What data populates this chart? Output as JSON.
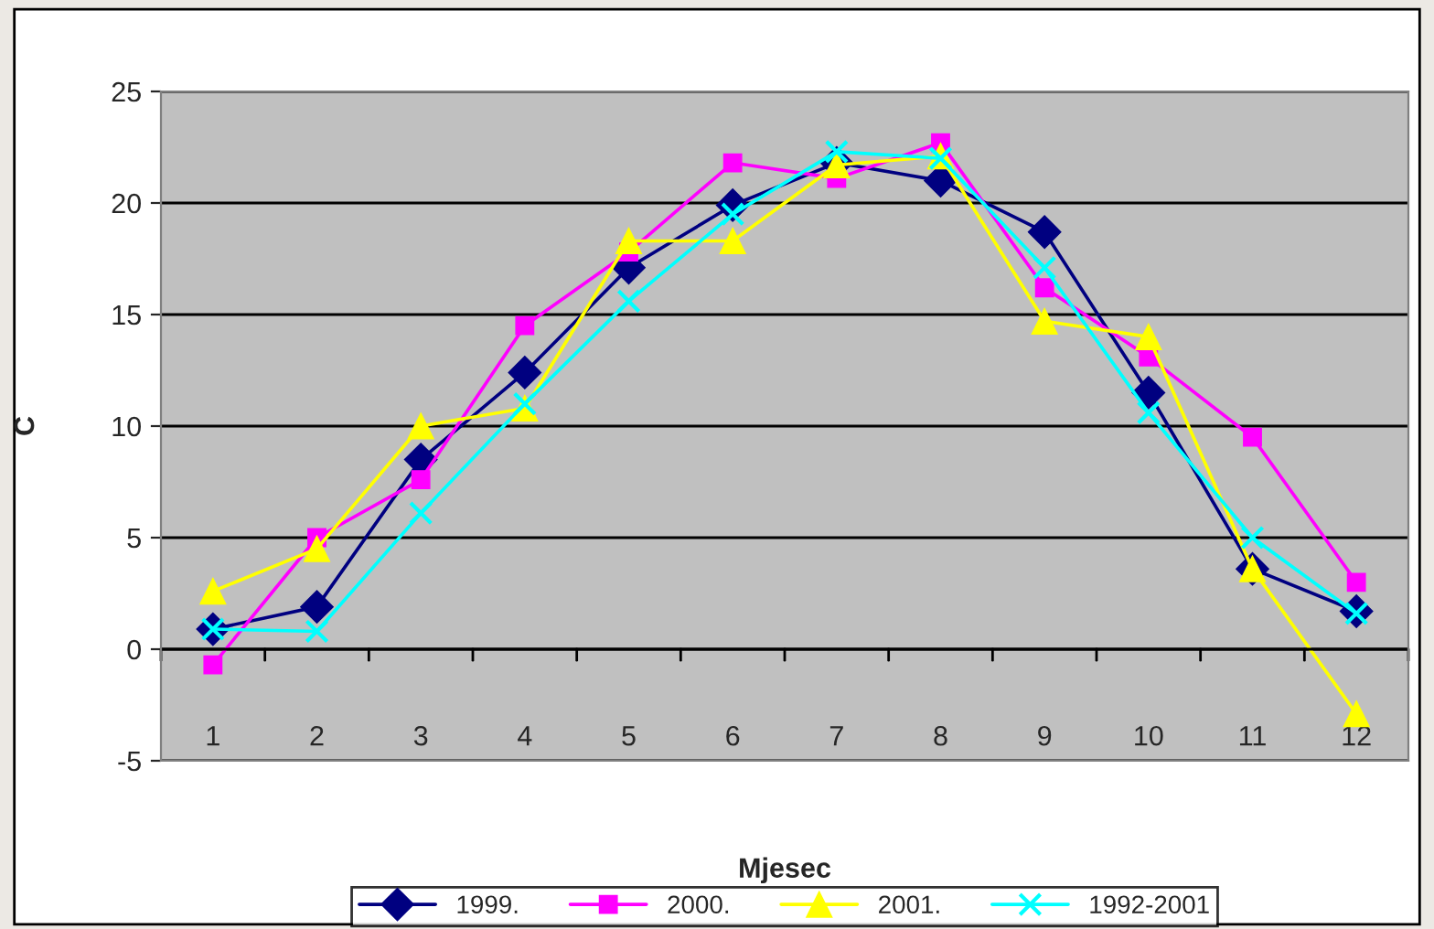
{
  "chart_data": {
    "type": "line",
    "xlabel": "Mjesec",
    "ylabel": "C",
    "categories": [
      "1",
      "2",
      "3",
      "4",
      "5",
      "6",
      "7",
      "8",
      "9",
      "10",
      "11",
      "12"
    ],
    "series": [
      {
        "name": "1999.",
        "color": "#000080",
        "marker": "diamond",
        "values": [
          0.9,
          1.9,
          8.5,
          12.4,
          17.1,
          19.9,
          21.8,
          21.0,
          18.7,
          11.5,
          3.6,
          1.7
        ]
      },
      {
        "name": "2000.",
        "color": "#ff00ff",
        "marker": "square",
        "values": [
          -0.7,
          5.0,
          7.6,
          14.5,
          17.8,
          21.8,
          21.1,
          22.7,
          16.2,
          13.1,
          9.5,
          3.0
        ]
      },
      {
        "name": "2001.",
        "color": "#ffff00",
        "marker": "triangle",
        "values": [
          2.6,
          4.5,
          10.0,
          10.8,
          18.3,
          18.3,
          21.7,
          22.1,
          14.7,
          14.0,
          3.6,
          -2.9
        ]
      },
      {
        "name": "1992-2001",
        "color": "#00ffff",
        "marker": "cross",
        "values": [
          0.9,
          0.8,
          6.1,
          11.0,
          15.6,
          19.5,
          22.3,
          22.0,
          17.1,
          10.6,
          5.0,
          1.6
        ]
      }
    ],
    "ylim": [
      -5,
      25
    ],
    "yticks": [
      -5,
      0,
      5,
      10,
      15,
      20,
      25
    ],
    "grid": "y",
    "legend": "bottom"
  }
}
